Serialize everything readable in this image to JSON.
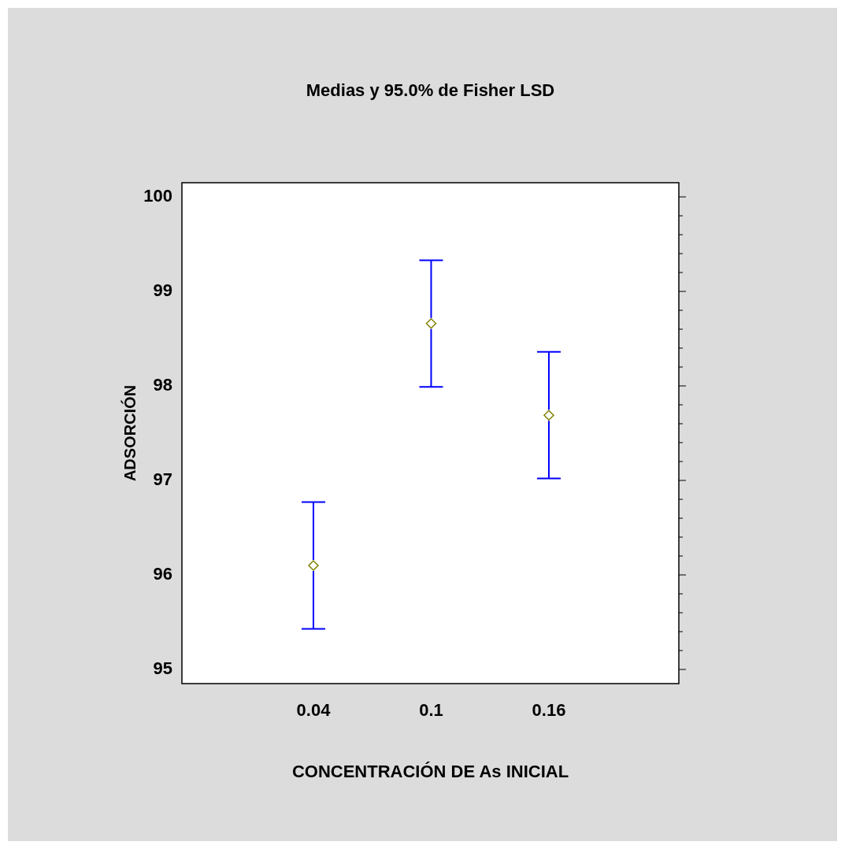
{
  "chart_data": {
    "type": "scatter",
    "title": "Medias y 95.0% de Fisher LSD",
    "xlabel": "CONCENTRACIÓN DE As INICIAL",
    "ylabel": "ADSORCIÓN",
    "categories": [
      "0.04",
      "0.1",
      "0.16"
    ],
    "values": [
      96.1,
      98.66,
      97.69
    ],
    "errors": [
      0.67,
      0.67,
      0.67
    ],
    "color": "#808000",
    "marker": "diamond",
    "ylim": [
      94.85,
      100.15
    ],
    "yticks": [
      95,
      {
        "value": 95.2,
        "label": null
      },
      {
        "value": 95.4,
        "label": null
      },
      {
        "value": 95.6,
        "label": null
      },
      {
        "value": 95.8,
        "label": null
      },
      96,
      {
        "value": 96.2,
        "label": null
      },
      {
        "value": 96.4,
        "label": null
      },
      {
        "value": 96.6,
        "label": null
      },
      {
        "value": 96.8,
        "label": null
      },
      97,
      {
        "value": 97.2,
        "label": null
      },
      {
        "value": 97.4,
        "label": null
      },
      {
        "value": 97.6,
        "label": null
      },
      {
        "value": 97.8,
        "label": null
      },
      98,
      {
        "value": 98.2,
        "label": null
      },
      {
        "value": 98.4,
        "label": null
      },
      {
        "value": 98.6,
        "label": null
      },
      {
        "value": 98.8,
        "label": null
      },
      99,
      {
        "value": 99.2,
        "label": null
      },
      {
        "value": 99.4,
        "label": null
      },
      {
        "value": 99.6,
        "label": null
      },
      {
        "value": 99.8,
        "label": null
      },
      100
    ]
  }
}
